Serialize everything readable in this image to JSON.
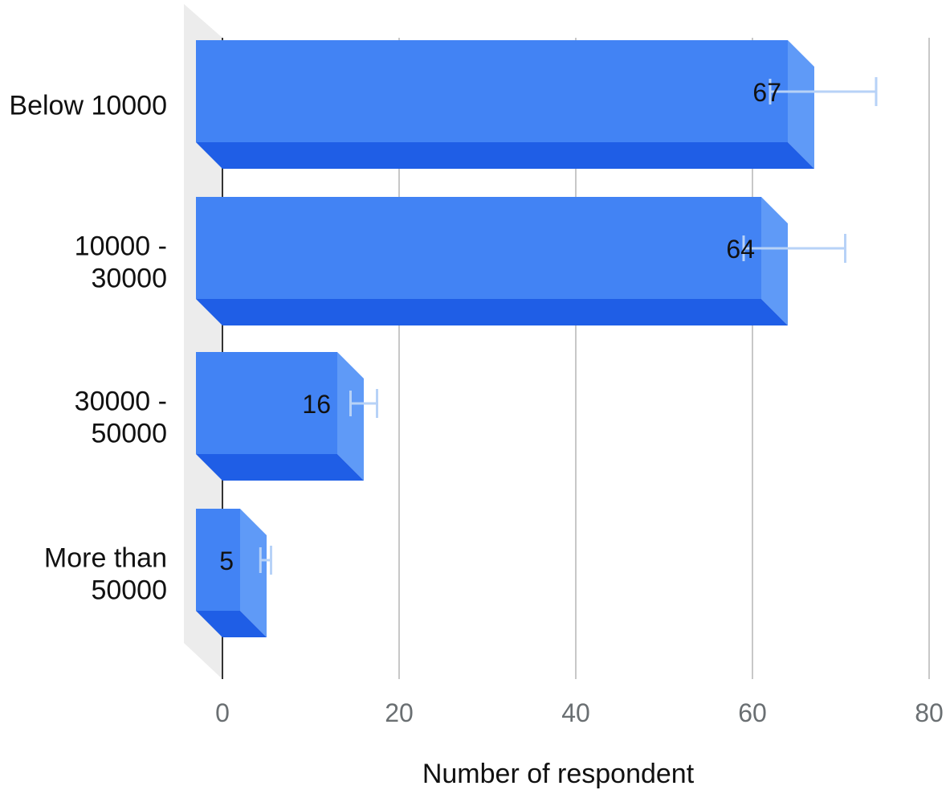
{
  "chart_data": {
    "type": "bar",
    "orientation": "horizontal",
    "style": "3d",
    "categories": [
      [
        "Below 10000"
      ],
      [
        "10000 -",
        "30000"
      ],
      [
        "30000 -",
        "50000"
      ],
      [
        "More than",
        "50000"
      ]
    ],
    "values": [
      67,
      64,
      16,
      5
    ],
    "data_labels": [
      "67",
      "64",
      "16",
      "5"
    ],
    "error_bars": [
      {
        "low": 62,
        "high": 74
      },
      {
        "low": 59,
        "high": 70.5
      },
      {
        "low": 14.5,
        "high": 17.5
      },
      {
        "low": 4.3,
        "high": 5.5
      }
    ],
    "xlabel": "Number of respondent",
    "ylabel": "",
    "xlim": [
      0,
      80
    ],
    "xticks": [
      0,
      20,
      40,
      60,
      80
    ],
    "tick_labels": [
      "0",
      "20",
      "40",
      "60",
      "80"
    ],
    "grid": true,
    "colors": {
      "bar_front": "#4283f4",
      "bar_side": "#5f9af7",
      "bar_bottom": "#1f5ee6",
      "grid": "#c8c8c8",
      "back_wall": "#ececec",
      "error_bar": "#b7d2f7",
      "axis": "#333333"
    }
  }
}
